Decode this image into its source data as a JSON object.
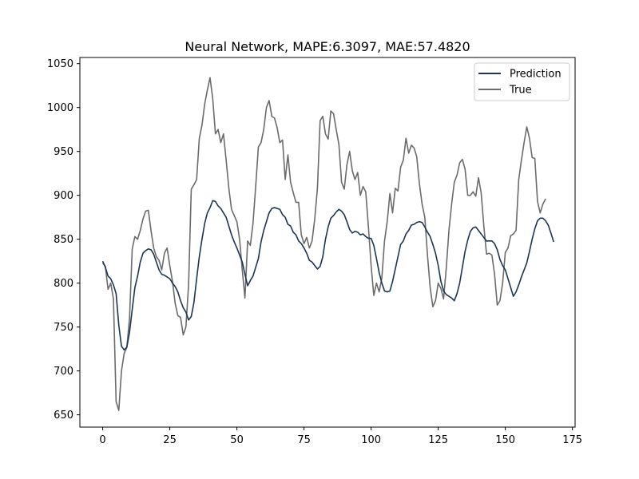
{
  "chart_data": {
    "type": "line",
    "title": "Neural Network, MAPE:6.3097, MAE:57.4820",
    "xlabel": "",
    "ylabel": "",
    "xlim": [
      -8.5,
      176
    ],
    "ylim": [
      636,
      1057
    ],
    "x_ticks": [
      0,
      25,
      50,
      75,
      100,
      125,
      150,
      175
    ],
    "y_ticks": [
      650,
      700,
      750,
      800,
      850,
      900,
      950,
      1000,
      1050
    ],
    "grid": false,
    "legend_position": "top-right",
    "series": [
      {
        "name": "Prediction",
        "color": "#1c3553",
        "x_start": 0,
        "values": [
          825,
          818,
          808,
          805,
          798,
          788,
          752,
          728,
          724,
          727,
          744,
          770,
          795,
          808,
          824,
          834,
          837,
          839,
          838,
          833,
          824,
          815,
          810,
          809,
          807,
          805,
          800,
          796,
          790,
          780,
          772,
          767,
          758,
          762,
          778,
          805,
          830,
          850,
          868,
          880,
          886,
          894,
          893,
          888,
          885,
          880,
          875,
          865,
          855,
          847,
          840,
          832,
          824,
          810,
          797,
          803,
          808,
          818,
          828,
          847,
          860,
          870,
          880,
          885,
          886,
          885,
          884,
          878,
          875,
          867,
          865,
          858,
          855,
          848,
          845,
          840,
          834,
          826,
          824,
          820,
          816,
          819,
          830,
          850,
          864,
          874,
          877,
          881,
          884,
          882,
          878,
          870,
          861,
          857,
          859,
          858,
          855,
          856,
          853,
          851,
          851,
          843,
          828,
          812,
          800,
          791,
          790,
          791,
          802,
          816,
          830,
          844,
          848,
          856,
          860,
          866,
          867,
          869,
          870,
          869,
          864,
          858,
          853,
          844,
          834,
          820,
          802,
          791,
          787,
          785,
          783,
          780,
          788,
          800,
          818,
          836,
          849,
          859,
          863,
          864,
          860,
          856,
          852,
          848,
          848,
          848,
          845,
          838,
          827,
          820,
          815,
          805,
          795,
          785,
          790,
          798,
          807,
          815,
          823,
          836,
          850,
          862,
          871,
          874,
          874,
          871,
          866,
          857,
          847
        ]
      },
      {
        "name": "True",
        "color": "#6b6b6b",
        "x_start": 0,
        "values": [
          823,
          819,
          793,
          800,
          782,
          665,
          655,
          700,
          720,
          727,
          760,
          839,
          853,
          850,
          860,
          873,
          882,
          883,
          860,
          840,
          830,
          826,
          815,
          834,
          840,
          820,
          802,
          777,
          763,
          761,
          741,
          750,
          798,
          907,
          912,
          918,
          965,
          980,
          1004,
          1020,
          1034,
          1010,
          970,
          975,
          960,
          970,
          940,
          908,
          884,
          877,
          870,
          850,
          815,
          783,
          848,
          843,
          868,
          910,
          955,
          960,
          975,
          1000,
          1008,
          990,
          988,
          977,
          960,
          963,
          918,
          946,
          915,
          903,
          892,
          892,
          855,
          845,
          852,
          840,
          848,
          873,
          908,
          985,
          990,
          970,
          964,
          996,
          993,
          975,
          958,
          915,
          907,
          935,
          950,
          928,
          918,
          926,
          900,
          910,
          904,
          864,
          820,
          786,
          800,
          790,
          806,
          848,
          870,
          902,
          880,
          908,
          905,
          932,
          940,
          965,
          948,
          957,
          954,
          944,
          913,
          890,
          875,
          832,
          795,
          773,
          780,
          800,
          794,
          782,
          817,
          860,
          890,
          915,
          923,
          937,
          941,
          930,
          900,
          900,
          904,
          899,
          920,
          903,
          865,
          833,
          834,
          832,
          810,
          775,
          780,
          800,
          835,
          840,
          854,
          856,
          860,
          918,
          940,
          960,
          978,
          965,
          943,
          942,
          893,
          880,
          890,
          896
        ]
      }
    ]
  }
}
